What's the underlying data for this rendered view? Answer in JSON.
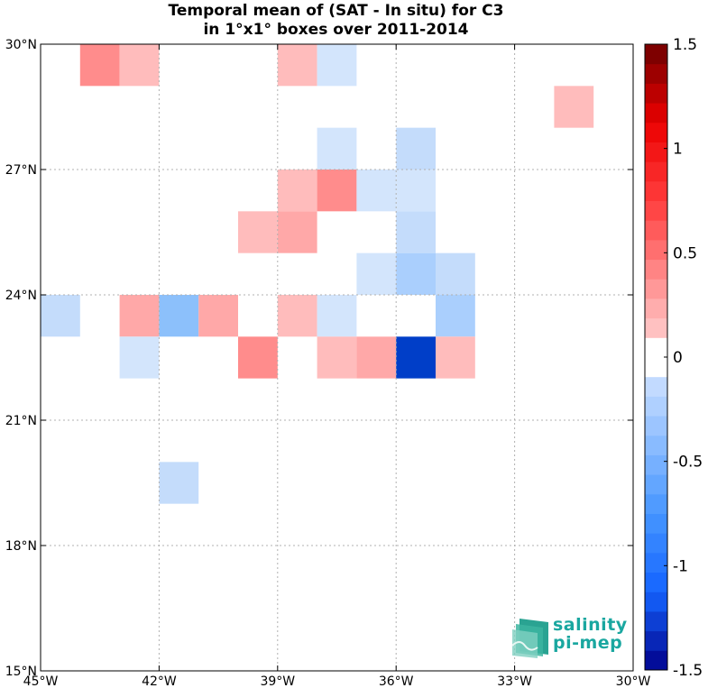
{
  "chart_data": {
    "type": "heatmap",
    "title": "Temporal mean of (SAT - In situ) for C3",
    "subtitle": "in 1°x1° boxes over 2011-2014",
    "xlim": [
      -45,
      -30
    ],
    "ylim": [
      15,
      30
    ],
    "x_ticks": [
      -45,
      -42,
      -39,
      -36,
      -33,
      -30
    ],
    "x_tick_labels": [
      "45°W",
      "42°W",
      "39°W",
      "36°W",
      "33°W",
      "30°W"
    ],
    "y_ticks": [
      15,
      18,
      21,
      24,
      27,
      30
    ],
    "y_tick_labels": [
      "15°N",
      "18°N",
      "21°N",
      "24°N",
      "27°N",
      "30°N"
    ],
    "grid": true,
    "colorbar": {
      "range": [
        -1.5,
        1.5
      ],
      "levels": 32,
      "tick_values": [
        1.5,
        1,
        0.5,
        0,
        -0.5,
        -1,
        -1.5
      ],
      "tick_labels": [
        "1.5",
        "1",
        "0.5",
        "0",
        "-0.5",
        "-1",
        "-1.5"
      ]
    },
    "cells": [
      {
        "lon": -44,
        "lat": 29,
        "value": 0.5
      },
      {
        "lon": -43,
        "lat": 29,
        "value": 0.2
      },
      {
        "lon": -39,
        "lat": 29,
        "value": 0.2
      },
      {
        "lon": -38,
        "lat": 29,
        "value": -0.2
      },
      {
        "lon": -32,
        "lat": 28,
        "value": 0.2
      },
      {
        "lon": -38,
        "lat": 27,
        "value": -0.2
      },
      {
        "lon": -36,
        "lat": 27,
        "value": -0.3
      },
      {
        "lon": -39,
        "lat": 26,
        "value": 0.2
      },
      {
        "lon": -38,
        "lat": 26,
        "value": 0.5
      },
      {
        "lon": -37,
        "lat": 26,
        "value": -0.2
      },
      {
        "lon": -36,
        "lat": 26,
        "value": -0.2
      },
      {
        "lon": -40,
        "lat": 25,
        "value": 0.2
      },
      {
        "lon": -39,
        "lat": 25,
        "value": 0.3
      },
      {
        "lon": -36,
        "lat": 25,
        "value": -0.3
      },
      {
        "lon": -37,
        "lat": 24,
        "value": -0.2
      },
      {
        "lon": -36,
        "lat": 24,
        "value": -0.4
      },
      {
        "lon": -35,
        "lat": 24,
        "value": -0.3
      },
      {
        "lon": -45,
        "lat": 23,
        "value": -0.3
      },
      {
        "lon": -43,
        "lat": 23,
        "value": 0.3
      },
      {
        "lon": -42,
        "lat": 23,
        "value": -0.5
      },
      {
        "lon": -41,
        "lat": 23,
        "value": 0.3
      },
      {
        "lon": -39,
        "lat": 23,
        "value": 0.2
      },
      {
        "lon": -38,
        "lat": 23,
        "value": -0.2
      },
      {
        "lon": -35,
        "lat": 23,
        "value": -0.4
      },
      {
        "lon": -43,
        "lat": 22,
        "value": -0.2
      },
      {
        "lon": -40,
        "lat": 22,
        "value": 0.5
      },
      {
        "lon": -38,
        "lat": 22,
        "value": 0.2
      },
      {
        "lon": -37,
        "lat": 22,
        "value": 0.3
      },
      {
        "lon": -36,
        "lat": 22,
        "value": -1.2
      },
      {
        "lon": -35,
        "lat": 22,
        "value": 0.2
      },
      {
        "lon": -42,
        "lat": 19,
        "value": -0.3
      }
    ]
  },
  "logo": {
    "line1": "salinity",
    "line2": "pi-mep"
  }
}
